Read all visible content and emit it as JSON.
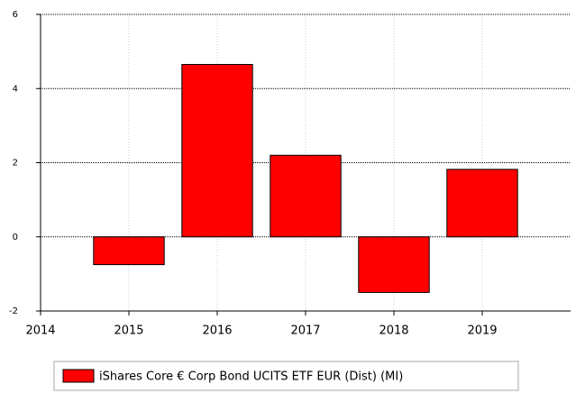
{
  "chart_data": {
    "type": "bar",
    "x": [
      2015,
      2016,
      2017,
      2018,
      2019
    ],
    "series": [
      {
        "name": "iShares Core € Corp Bond UCITS ETF EUR (Dist) (MI)",
        "color": "#ff0000",
        "values": [
          -0.75,
          4.65,
          2.2,
          -1.5,
          1.82
        ]
      }
    ],
    "xlim": [
      2014,
      2020
    ],
    "xticks": [
      2014,
      2015,
      2016,
      2017,
      2018,
      2019
    ],
    "ylim": [
      -2,
      6
    ],
    "yticks": [
      -2,
      0,
      2,
      4,
      6
    ],
    "grid": true,
    "legend": "bottom"
  }
}
